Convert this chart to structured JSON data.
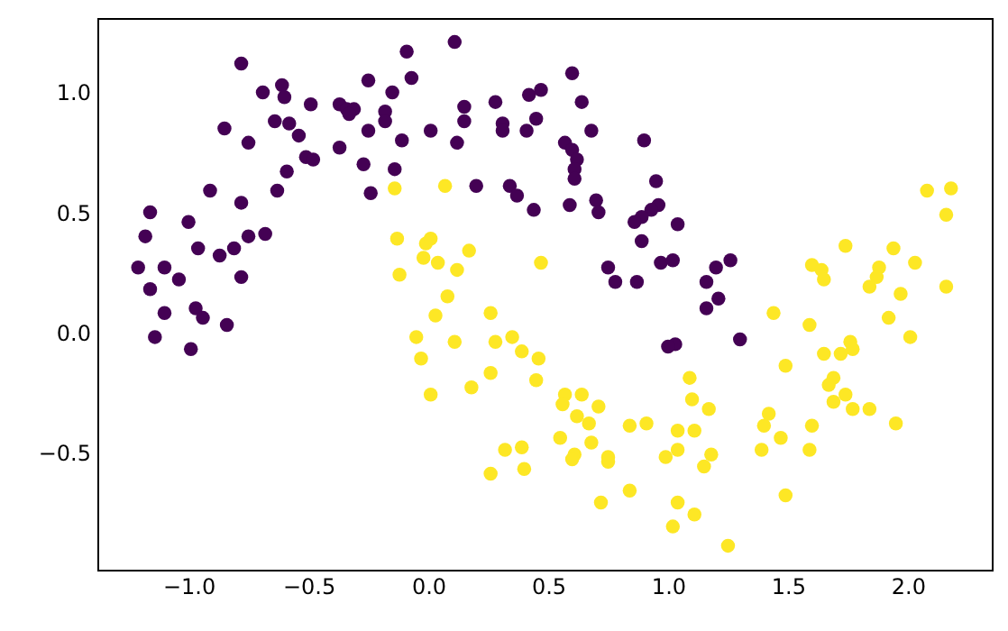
{
  "chart_data": {
    "type": "scatter",
    "marker": "circle",
    "grid": false,
    "xlim": [
      -1.38,
      2.35
    ],
    "ylim": [
      -0.99,
      1.31
    ],
    "xticks": [
      {
        "value": -1,
        "label": "−1.0"
      },
      {
        "value": -0.5,
        "label": "−0.5"
      },
      {
        "value": 0,
        "label": "0.0"
      },
      {
        "value": 0.5,
        "label": "0.5"
      },
      {
        "value": 1,
        "label": "1.0"
      },
      {
        "value": 1.5,
        "label": "1.5"
      },
      {
        "value": 2,
        "label": "2.0"
      }
    ],
    "yticks": [
      {
        "value": -0.5,
        "label": "−0.5"
      },
      {
        "value": 0,
        "label": "0.0"
      },
      {
        "value": 0.5,
        "label": "0.5"
      },
      {
        "value": 1,
        "label": "1.0"
      }
    ],
    "series": [
      {
        "color": "#440154",
        "x": [
          -0.78,
          -0.69,
          -0.61,
          -0.6,
          -0.49,
          -0.85,
          -0.75,
          -0.64,
          -0.58,
          -0.54,
          -0.51,
          -0.48,
          -0.59,
          -0.63,
          -0.91,
          -0.78,
          -1.16,
          -1.0,
          -1.18,
          -0.96,
          -0.87,
          -0.81,
          -0.75,
          -0.68,
          -1.21,
          -1.1,
          -1.04,
          -0.78,
          -1.16,
          -1.1,
          -0.97,
          -0.94,
          -0.84,
          -1.14,
          -0.99,
          -0.37,
          -0.34,
          -0.31,
          -0.33,
          -0.25,
          -0.15,
          -0.18,
          -0.18,
          -0.25,
          -0.37,
          -0.27,
          -0.24,
          -0.14,
          -0.09,
          0.11,
          -0.07,
          -0.11,
          0.01,
          0.15,
          0.15,
          0.12,
          0.28,
          0.31,
          0.31,
          0.42,
          0.47,
          0.45,
          0.41,
          0.2,
          0.34,
          0.37,
          0.44,
          0.6,
          0.64,
          0.68,
          0.57,
          0.6,
          0.62,
          0.61,
          0.61,
          0.59,
          0.7,
          0.71,
          0.9,
          0.95,
          0.96,
          0.93,
          0.89,
          0.86,
          1.04,
          0.89,
          0.75,
          0.78,
          0.87,
          0.97,
          1.02,
          1.2,
          1.16,
          1.21,
          1.16,
          1.03,
          1.0,
          1.26,
          1.3
        ],
        "values": [
          1.12,
          1.0,
          1.03,
          0.98,
          0.95,
          0.85,
          0.79,
          0.88,
          0.87,
          0.82,
          0.73,
          0.72,
          0.67,
          0.59,
          0.59,
          0.54,
          0.5,
          0.46,
          0.4,
          0.35,
          0.32,
          0.35,
          0.4,
          0.41,
          0.27,
          0.27,
          0.22,
          0.23,
          0.18,
          0.08,
          0.1,
          0.06,
          0.03,
          -0.02,
          -0.07,
          0.95,
          0.93,
          0.93,
          0.91,
          1.05,
          1.0,
          0.92,
          0.88,
          0.84,
          0.77,
          0.7,
          0.58,
          0.68,
          1.17,
          1.21,
          1.06,
          0.8,
          0.84,
          0.94,
          0.88,
          0.79,
          0.96,
          0.87,
          0.84,
          0.99,
          1.01,
          0.89,
          0.84,
          0.61,
          0.61,
          0.57,
          0.51,
          1.08,
          0.96,
          0.84,
          0.79,
          0.76,
          0.72,
          0.68,
          0.64,
          0.53,
          0.55,
          0.5,
          0.8,
          0.63,
          0.53,
          0.51,
          0.48,
          0.46,
          0.45,
          0.38,
          0.27,
          0.21,
          0.21,
          0.29,
          0.3,
          0.27,
          0.21,
          0.14,
          0.1,
          -0.05,
          -0.06,
          0.3,
          -0.03
        ]
      },
      {
        "color": "#fde725",
        "x": [
          -0.14,
          0.07,
          -0.13,
          -0.01,
          0.01,
          -0.02,
          0.04,
          0.17,
          -0.12,
          0.12,
          0.47,
          0.08,
          0.03,
          0.26,
          -0.05,
          0.11,
          0.28,
          0.35,
          0.39,
          0.46,
          -0.03,
          2.08,
          2.18,
          2.16,
          1.74,
          1.94,
          2.03,
          1.6,
          1.64,
          1.65,
          1.88,
          1.87,
          1.84,
          1.97,
          2.16,
          1.44,
          1.59,
          1.92,
          2.01,
          1.76,
          1.77,
          1.72,
          1.65,
          1.49,
          1.69,
          1.67,
          1.74,
          1.69,
          1.77,
          1.84,
          1.42,
          1.09,
          1.1,
          1.17,
          1.39,
          1.47,
          1.4,
          1.6,
          1.59,
          1.95,
          1.04,
          1.11,
          1.04,
          1.18,
          1.15,
          1.49,
          1.04,
          1.11,
          1.02,
          1.25,
          0.26,
          0.45,
          0.18,
          0.01,
          0.57,
          0.64,
          0.56,
          0.71,
          0.62,
          0.67,
          0.84,
          0.91,
          0.55,
          0.68,
          0.32,
          0.39,
          0.61,
          0.6,
          0.75,
          0.75,
          0.99,
          0.26,
          0.4,
          0.72,
          0.84
        ],
        "values": [
          0.6,
          0.61,
          0.39,
          0.37,
          0.39,
          0.31,
          0.29,
          0.34,
          0.24,
          0.26,
          0.29,
          0.15,
          0.07,
          0.08,
          -0.02,
          -0.04,
          -0.04,
          -0.02,
          -0.08,
          -0.11,
          -0.11,
          0.59,
          0.6,
          0.49,
          0.36,
          0.35,
          0.29,
          0.28,
          0.26,
          0.22,
          0.27,
          0.23,
          0.19,
          0.16,
          0.19,
          0.08,
          0.03,
          0.06,
          -0.02,
          -0.04,
          -0.07,
          -0.09,
          -0.09,
          -0.14,
          -0.19,
          -0.22,
          -0.26,
          -0.29,
          -0.32,
          -0.32,
          -0.34,
          -0.19,
          -0.28,
          -0.32,
          -0.49,
          -0.44,
          -0.39,
          -0.39,
          -0.49,
          -0.38,
          -0.41,
          -0.41,
          -0.49,
          -0.51,
          -0.56,
          -0.68,
          -0.71,
          -0.76,
          -0.81,
          -0.89,
          -0.17,
          -0.2,
          -0.23,
          -0.26,
          -0.26,
          -0.26,
          -0.3,
          -0.31,
          -0.35,
          -0.38,
          -0.39,
          -0.38,
          -0.44,
          -0.46,
          -0.49,
          -0.48,
          -0.51,
          -0.53,
          -0.52,
          -0.54,
          -0.52,
          -0.59,
          -0.57,
          -0.71,
          -0.66
        ]
      }
    ]
  }
}
